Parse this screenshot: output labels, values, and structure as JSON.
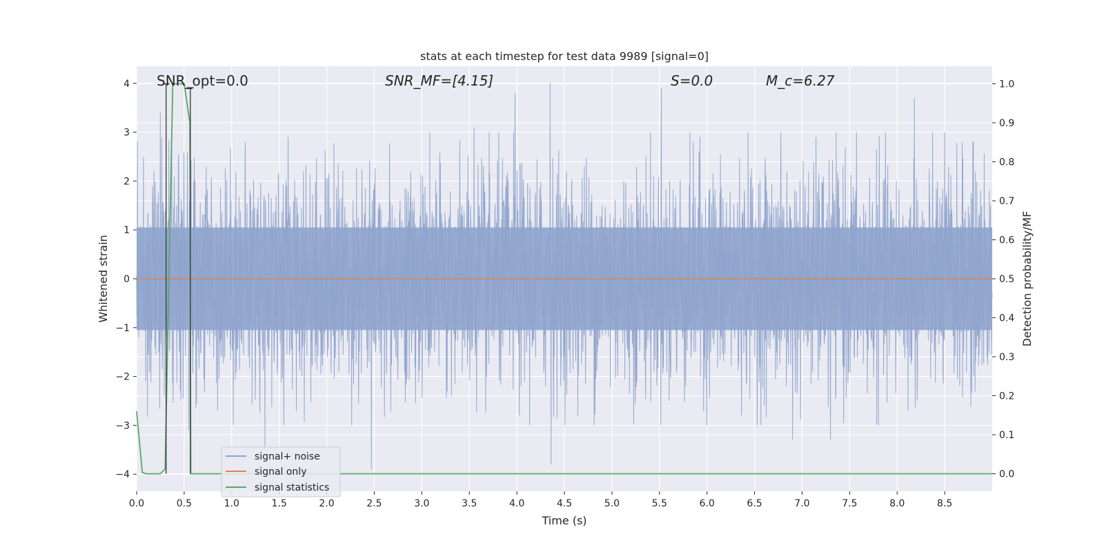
{
  "chart_data": {
    "type": "line",
    "title": "stats at each timestep for test data 9989 [signal=0]",
    "xlabel": "Time (s)",
    "ylabel": "Whitened strain",
    "y2label": "Detection probability/MF",
    "xlim": [
      0.0,
      9.0
    ],
    "ylim": [
      -4.35,
      4.35
    ],
    "y2lim": [
      -0.045,
      1.045
    ],
    "x_ticks": [
      0.0,
      0.5,
      1.0,
      1.5,
      2.0,
      2.5,
      3.0,
      3.5,
      4.0,
      4.5,
      5.0,
      5.5,
      6.0,
      6.5,
      7.0,
      7.5,
      8.0,
      8.5
    ],
    "x_tick_labels": [
      "0.0",
      "0.5",
      "1.0",
      "1.5",
      "2.0",
      "2.5",
      "3.0",
      "3.5",
      "4.0",
      "4.5",
      "5.0",
      "5.5",
      "6.0",
      "6.5",
      "7.0",
      "7.5",
      "8.0",
      "8.5"
    ],
    "y_ticks": [
      -4,
      -3,
      -2,
      -1,
      0,
      1,
      2,
      3,
      4
    ],
    "y_tick_labels": [
      "−4",
      "−3",
      "−2",
      "−1",
      "0",
      "1",
      "2",
      "3",
      "4"
    ],
    "y2_ticks": [
      0.0,
      0.1,
      0.2,
      0.3,
      0.4,
      0.5,
      0.6,
      0.7,
      0.8,
      0.9,
      1.0
    ],
    "y2_tick_labels": [
      "0.0",
      "0.1",
      "0.2",
      "0.3",
      "0.4",
      "0.5",
      "0.6",
      "0.7",
      "0.8",
      "0.9",
      "1.0"
    ],
    "grid": true,
    "legend_position": "lower-left",
    "annotations": [
      {
        "text": "SNR_opt=0.0",
        "italic": false
      },
      {
        "text": "SNR_MF=[4.15]",
        "italic": true
      },
      {
        "text": "S=0.0",
        "italic": true
      },
      {
        "text": "M_c=6.27",
        "italic": true
      }
    ],
    "series": [
      {
        "name": "signal+ noise",
        "color": "#8fa4cc",
        "axis": "left",
        "kind": "noise",
        "x_range": [
          0.0,
          9.0
        ],
        "typical_amplitude": 1.5,
        "peak_values": [
          {
            "x": 0.25,
            "y": 3.4
          },
          {
            "x": 0.55,
            "y": -3.1
          },
          {
            "x": 1.35,
            "y": -3.5
          },
          {
            "x": 2.47,
            "y": -3.9
          },
          {
            "x": 3.55,
            "y": 3.1
          },
          {
            "x": 3.98,
            "y": 3.8
          },
          {
            "x": 4.35,
            "y": 4.0
          },
          {
            "x": 4.36,
            "y": -3.8
          },
          {
            "x": 5.52,
            "y": 3.9
          },
          {
            "x": 5.6,
            "y": -2.5
          },
          {
            "x": 6.9,
            "y": -3.3
          },
          {
            "x": 7.3,
            "y": -3.3
          },
          {
            "x": 8.18,
            "y": 3.7
          },
          {
            "x": 8.5,
            "y": 3.0
          }
        ]
      },
      {
        "name": "signal only",
        "color": "#dd8452",
        "axis": "left",
        "kind": "line",
        "x": [
          0.0,
          9.0
        ],
        "y": [
          0.0,
          0.0
        ]
      },
      {
        "name": "signal statistics",
        "color": "#55a868",
        "axis": "right",
        "kind": "line",
        "x": [
          0.0,
          0.06,
          0.1,
          0.25,
          0.3,
          0.38,
          0.4,
          0.5,
          0.56,
          0.57,
          0.62,
          9.0
        ],
        "y": [
          0.16,
          0.003,
          0.0,
          0.0,
          0.012,
          1.0,
          1.0,
          1.0,
          0.9,
          0.0,
          0.0,
          0.0
        ]
      }
    ],
    "markers": [
      {
        "x": 0.31,
        "y_top": 1.0,
        "y_bottom": 0.0,
        "color": "#404040",
        "axis": "right"
      },
      {
        "x": 0.565,
        "y_top": 0.99,
        "y_bottom": 0.0,
        "color": "#404040",
        "axis": "right"
      }
    ]
  }
}
